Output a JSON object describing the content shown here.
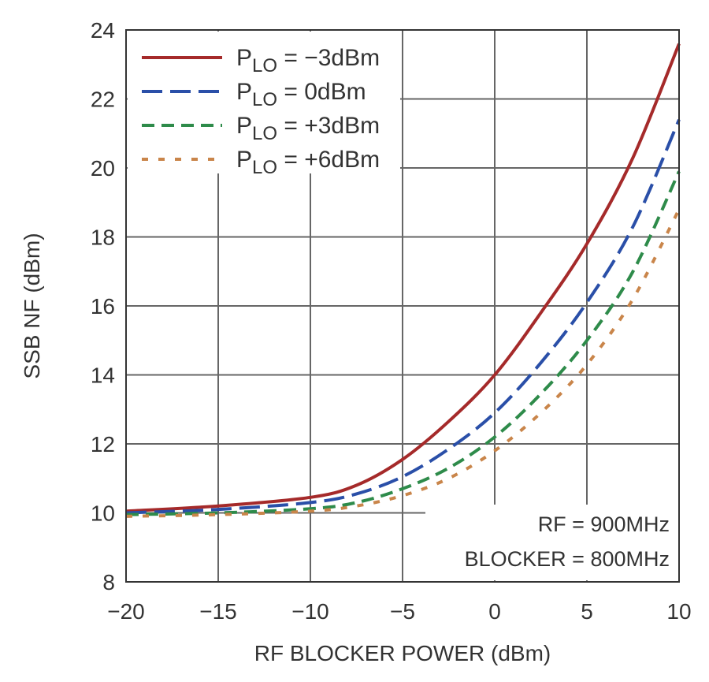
{
  "chart_data": {
    "type": "line",
    "title": "",
    "xlabel": "RF BLOCKER POWER (dBm)",
    "ylabel": "SSB NF (dBm)",
    "xlim": [
      -20,
      10
    ],
    "ylim": [
      8,
      24
    ],
    "xticks": [
      -20,
      -15,
      -10,
      -5,
      0,
      5,
      10
    ],
    "xtick_labels": [
      "−20",
      "−15",
      "−10",
      "−5",
      "0",
      "5",
      "10"
    ],
    "yticks": [
      8,
      10,
      12,
      14,
      16,
      18,
      20,
      22,
      24
    ],
    "ytick_labels": [
      "8",
      "10",
      "12",
      "14",
      "16",
      "18",
      "20",
      "22",
      "24"
    ],
    "grid": true,
    "legend_placement": "top-left",
    "x": [
      -20,
      -15,
      -10,
      -7.5,
      -5,
      -2.5,
      0,
      2.5,
      5,
      7.5,
      10
    ],
    "series": [
      {
        "name_main": "P",
        "name_sub": "LO",
        "name_rest": " = −3dBm",
        "color": "#a52a2a",
        "style": "solid",
        "values": [
          10.05,
          10.2,
          10.45,
          10.8,
          11.55,
          12.65,
          14.0,
          15.8,
          17.8,
          20.3,
          23.6
        ]
      },
      {
        "name_main": "P",
        "name_sub": "LO",
        "name_rest": " = 0dBm",
        "color": "#2a4fa8",
        "style": "long-dash",
        "values": [
          10.0,
          10.1,
          10.3,
          10.55,
          11.05,
          11.85,
          12.9,
          14.35,
          16.1,
          18.3,
          21.4
        ]
      },
      {
        "name_main": "P",
        "name_sub": "LO",
        "name_rest": " = +3dBm",
        "color": "#2e8b4a",
        "style": "dash",
        "values": [
          9.95,
          10.0,
          10.12,
          10.3,
          10.7,
          11.3,
          12.2,
          13.45,
          15.0,
          17.0,
          19.9
        ]
      },
      {
        "name_main": "P",
        "name_sub": "LO",
        "name_rest": " = +6dBm",
        "color": "#c9854a",
        "style": "dot",
        "values": [
          9.9,
          9.95,
          10.05,
          10.2,
          10.5,
          11.0,
          11.8,
          12.9,
          14.3,
          16.2,
          18.8
        ]
      }
    ],
    "annotations": [
      "RF = 900MHz",
      "BLOCKER = 800MHz"
    ]
  }
}
